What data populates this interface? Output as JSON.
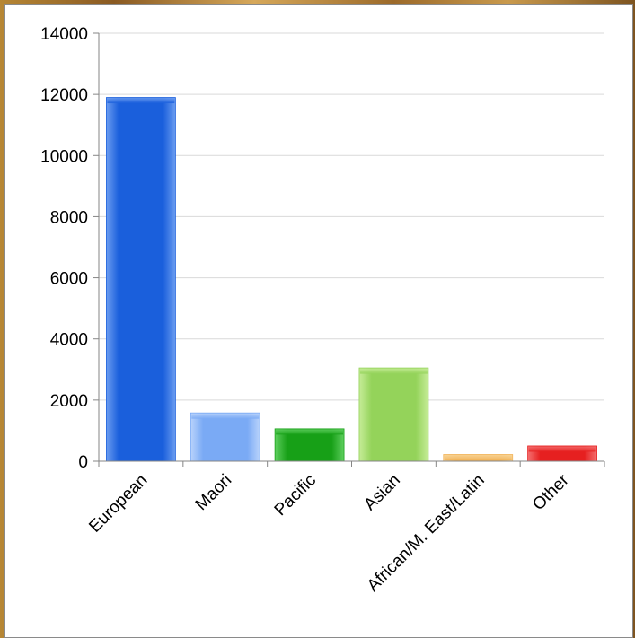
{
  "chart_data": {
    "type": "bar",
    "title": "",
    "xlabel": "",
    "ylabel": "",
    "categories": [
      "European",
      "Maori",
      "Pacific",
      "Asian",
      "African/M. East/Latin",
      "Other"
    ],
    "values": [
      11900,
      1580,
      1060,
      3050,
      220,
      500
    ],
    "ylim": [
      0,
      14000
    ],
    "yticks": [
      "0",
      "2000",
      "4000",
      "6000",
      "8000",
      "10000",
      "12000",
      "14000"
    ],
    "grid": true,
    "colors": [
      "#1a5fdc",
      "#7aaaf5",
      "#17a017",
      "#94d35a",
      "#f2b45a",
      "#e62020"
    ],
    "highlight_colors": [
      "#6b9cf0",
      "#b9d3fb",
      "#5fcf5f",
      "#c6ec98",
      "#f8d598",
      "#f47070"
    ]
  }
}
